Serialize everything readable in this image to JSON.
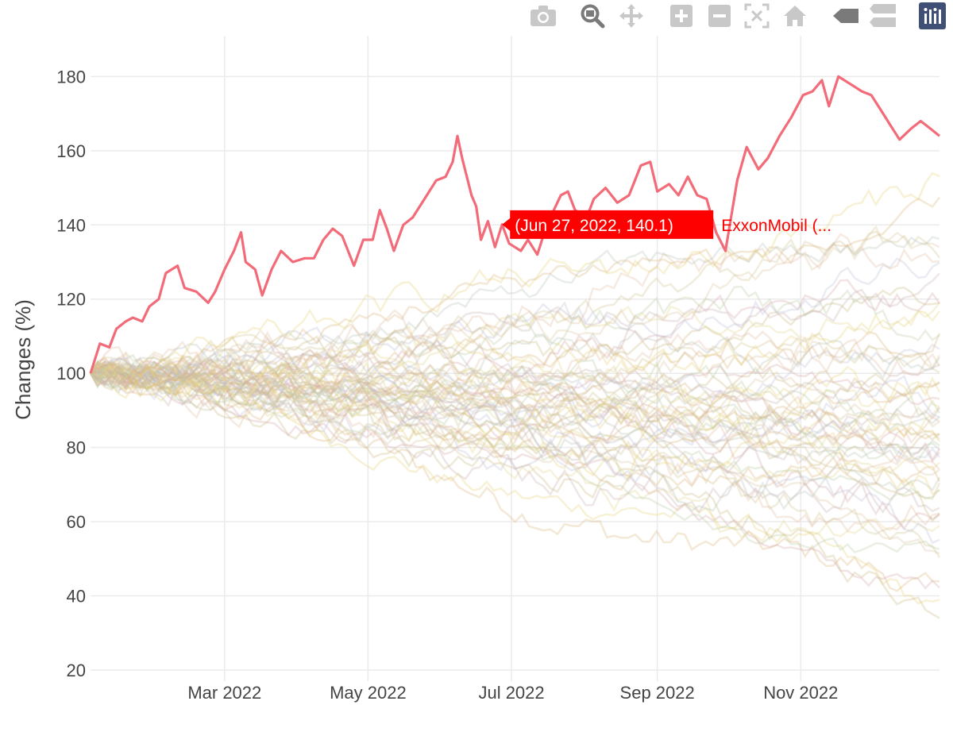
{
  "modebar": {
    "buttons": [
      {
        "name": "camera-icon",
        "title": "Download plot as a png"
      },
      {
        "name": "zoom-icon",
        "title": "Zoom",
        "active": true
      },
      {
        "name": "pan-icon",
        "title": "Pan"
      },
      {
        "name": "zoom-in-icon",
        "title": "Zoom in"
      },
      {
        "name": "zoom-out-icon",
        "title": "Zoom out"
      },
      {
        "name": "autoscale-icon",
        "title": "Autoscale"
      },
      {
        "name": "home-icon",
        "title": "Reset axes"
      },
      {
        "name": "spike-icon",
        "title": "Show closest data on hover"
      },
      {
        "name": "compare-icon",
        "title": "Compare data on hover"
      },
      {
        "name": "plotly-logo-icon",
        "title": "Produced with Plotly"
      }
    ],
    "colors": {
      "icon": "#c8c8c8",
      "icon_active": "#7a7a7a",
      "logo_bg": "#3f4f75"
    }
  },
  "chart_data": {
    "type": "line",
    "ylabel": "Changes (%)",
    "xlabel": "",
    "x_range": [
      "2022-01-03",
      "2022-12-30"
    ],
    "ylim": [
      17,
      191
    ],
    "y_ticks": [
      20,
      40,
      60,
      80,
      100,
      120,
      140,
      160,
      180
    ],
    "x_ticks": [
      {
        "date": "2022-03-01",
        "label": "Mar 2022"
      },
      {
        "date": "2022-05-01",
        "label": "May 2022"
      },
      {
        "date": "2022-07-01",
        "label": "Jul 2022"
      },
      {
        "date": "2022-09-01",
        "label": "Sep 2022"
      },
      {
        "date": "2022-11-01",
        "label": "Nov 2022"
      }
    ],
    "grid": true,
    "highlight": {
      "name": "ExxonMobil (...",
      "color": "#f26b78",
      "points": [
        [
          "2022-01-03",
          100
        ],
        [
          "2022-01-07",
          108
        ],
        [
          "2022-01-11",
          107
        ],
        [
          "2022-01-14",
          112
        ],
        [
          "2022-01-18",
          114
        ],
        [
          "2022-01-21",
          115
        ],
        [
          "2022-01-25",
          114
        ],
        [
          "2022-01-28",
          118
        ],
        [
          "2022-02-01",
          120
        ],
        [
          "2022-02-04",
          127
        ],
        [
          "2022-02-09",
          129
        ],
        [
          "2022-02-12",
          123
        ],
        [
          "2022-02-17",
          122
        ],
        [
          "2022-02-22",
          119
        ],
        [
          "2022-02-25",
          122
        ],
        [
          "2022-03-01",
          128
        ],
        [
          "2022-03-05",
          133
        ],
        [
          "2022-03-08",
          138
        ],
        [
          "2022-03-10",
          130
        ],
        [
          "2022-03-14",
          128
        ],
        [
          "2022-03-17",
          121
        ],
        [
          "2022-03-21",
          128
        ],
        [
          "2022-03-25",
          133
        ],
        [
          "2022-03-30",
          130
        ],
        [
          "2022-04-04",
          131
        ],
        [
          "2022-04-08",
          131
        ],
        [
          "2022-04-12",
          136
        ],
        [
          "2022-04-16",
          139
        ],
        [
          "2022-04-20",
          137
        ],
        [
          "2022-04-25",
          129
        ],
        [
          "2022-04-29",
          136
        ],
        [
          "2022-05-03",
          136
        ],
        [
          "2022-05-06",
          144
        ],
        [
          "2022-05-09",
          139
        ],
        [
          "2022-05-12",
          133
        ],
        [
          "2022-05-16",
          140
        ],
        [
          "2022-05-20",
          142
        ],
        [
          "2022-05-25",
          147
        ],
        [
          "2022-05-30",
          152
        ],
        [
          "2022-06-03",
          153
        ],
        [
          "2022-06-06",
          157
        ],
        [
          "2022-06-08",
          164
        ],
        [
          "2022-06-10",
          158
        ],
        [
          "2022-06-14",
          148
        ],
        [
          "2022-06-16",
          145
        ],
        [
          "2022-06-18",
          136
        ],
        [
          "2022-06-21",
          141
        ],
        [
          "2022-06-24",
          134
        ],
        [
          "2022-06-27",
          140.1
        ],
        [
          "2022-06-30",
          135
        ],
        [
          "2022-07-05",
          133
        ],
        [
          "2022-07-08",
          136
        ],
        [
          "2022-07-12",
          132
        ],
        [
          "2022-07-15",
          138
        ],
        [
          "2022-07-19",
          144
        ],
        [
          "2022-07-22",
          148
        ],
        [
          "2022-07-25",
          149
        ],
        [
          "2022-07-28",
          144
        ],
        [
          "2022-08-02",
          142
        ],
        [
          "2022-08-05",
          147
        ],
        [
          "2022-08-10",
          150
        ],
        [
          "2022-08-15",
          146
        ],
        [
          "2022-08-20",
          148
        ],
        [
          "2022-08-25",
          156
        ],
        [
          "2022-08-29",
          157
        ],
        [
          "2022-09-01",
          149
        ],
        [
          "2022-09-06",
          151
        ],
        [
          "2022-09-10",
          148
        ],
        [
          "2022-09-14",
          153
        ],
        [
          "2022-09-18",
          148
        ],
        [
          "2022-09-22",
          147
        ],
        [
          "2022-09-26",
          138
        ],
        [
          "2022-09-30",
          133
        ],
        [
          "2022-10-05",
          152
        ],
        [
          "2022-10-09",
          161
        ],
        [
          "2022-10-14",
          155
        ],
        [
          "2022-10-18",
          158
        ],
        [
          "2022-10-23",
          164
        ],
        [
          "2022-10-28",
          169
        ],
        [
          "2022-11-02",
          175
        ],
        [
          "2022-11-06",
          176
        ],
        [
          "2022-11-10",
          179
        ],
        [
          "2022-11-13",
          172
        ],
        [
          "2022-11-17",
          180
        ],
        [
          "2022-11-22",
          178
        ],
        [
          "2022-11-27",
          176
        ],
        [
          "2022-12-01",
          175
        ],
        [
          "2022-12-05",
          171
        ],
        [
          "2022-12-09",
          167
        ],
        [
          "2022-12-13",
          163
        ],
        [
          "2022-12-18",
          166
        ],
        [
          "2022-12-22",
          168
        ],
        [
          "2022-12-26",
          166
        ],
        [
          "2022-12-30",
          164
        ]
      ]
    },
    "background_series": {
      "count": 62,
      "palette": [
        "#d9b47a",
        "#e6cf78",
        "#c9b57f",
        "#d4a6a6",
        "#b9c9a3",
        "#e2d48c",
        "#c7b0b0",
        "#bcbcd8",
        "#d9c39c",
        "#cfc28d",
        "#e0b9a0",
        "#b5c2b5"
      ],
      "opacity": 0.3,
      "end_values": [
        34,
        38,
        44,
        47,
        50,
        52,
        55,
        57,
        58,
        60,
        62,
        63,
        64,
        66,
        68,
        69,
        70,
        71,
        72,
        74,
        75,
        76,
        77,
        78,
        79,
        80,
        81,
        82,
        83,
        84,
        85,
        86,
        87,
        88,
        89,
        90,
        91,
        92,
        93,
        94,
        95,
        96,
        98,
        100,
        102,
        104,
        106,
        108,
        110,
        112,
        115,
        118,
        120,
        122,
        125,
        128,
        131,
        134,
        137,
        142,
        146,
        150
      ]
    },
    "hover": {
      "label": "(Jun 27, 2022, 140.1)",
      "name": "ExxonMobil (...",
      "date": "2022-06-27",
      "value": 140.1,
      "color": "#ff0000"
    }
  }
}
